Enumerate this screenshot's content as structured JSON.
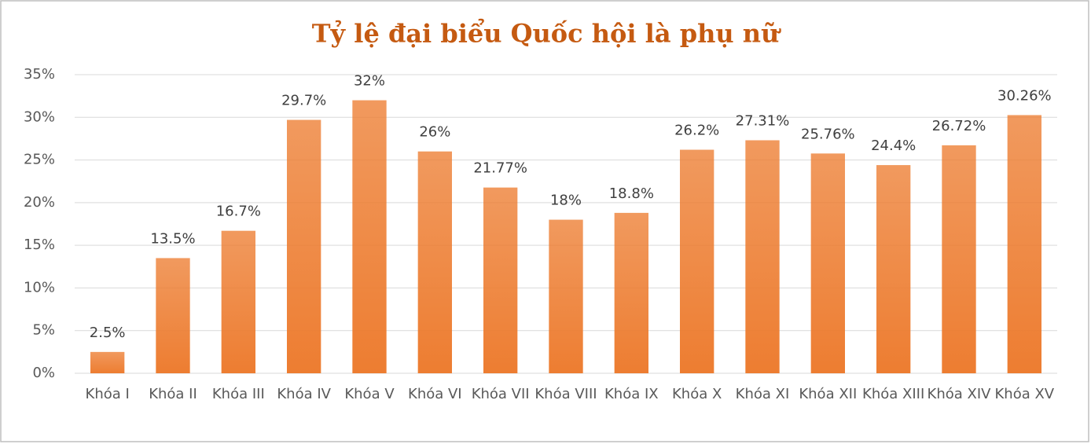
{
  "chart_data": {
    "type": "bar",
    "title": "Tỷ lệ đại biểu Quốc hội là phụ nữ",
    "categories": [
      "Khóa I",
      "Khóa II",
      "Khóa III",
      "Khóa IV",
      "Khóa V",
      "Khóa VI",
      "Khóa VII",
      "Khóa VIII",
      "Khóa IX",
      "Khóa X",
      "Khóa XI",
      "Khóa XII",
      "Khóa XIII",
      "Khóa XIV",
      "Khóa XV"
    ],
    "values": [
      2.5,
      13.5,
      16.7,
      29.7,
      32,
      26,
      21.77,
      18,
      18.8,
      26.2,
      27.31,
      25.76,
      24.4,
      26.72,
      30.26
    ],
    "value_labels": [
      "2.5%",
      "13.5%",
      "16.7%",
      "29.7%",
      "32%",
      "26%",
      "21.77%",
      "18%",
      "18.8%",
      "26.2%",
      "27.31%",
      "25.76%",
      "24.4%",
      "26.72%",
      "30.26%"
    ],
    "color": "#ed7d31",
    "ylim": [
      0,
      35
    ],
    "yticks": [
      {
        "value": 0,
        "label": "0%"
      },
      {
        "value": 5,
        "label": "5%"
      },
      {
        "value": 10,
        "label": "10%"
      },
      {
        "value": 15,
        "label": "15%"
      },
      {
        "value": 20,
        "label": "20%"
      },
      {
        "value": 25,
        "label": "25%"
      },
      {
        "value": 30,
        "label": "30%"
      },
      {
        "value": 35,
        "label": "35%"
      }
    ],
    "grid": true
  }
}
